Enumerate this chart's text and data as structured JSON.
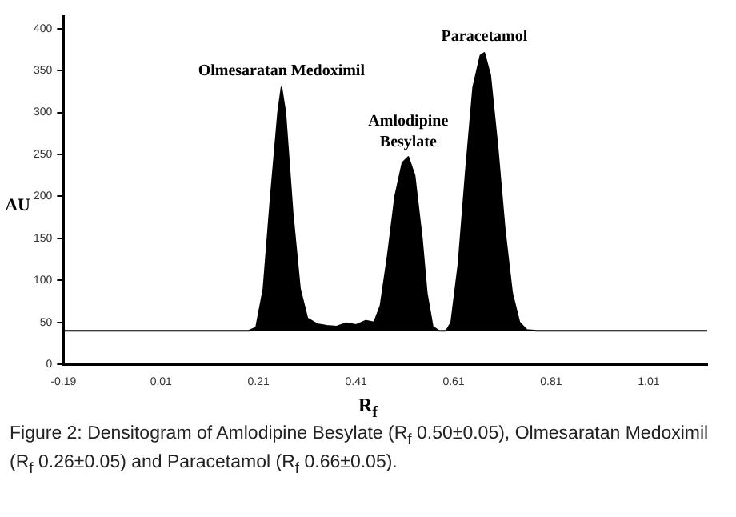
{
  "chart_data": {
    "type": "area",
    "xlabel": "R$_{f}$",
    "ylabel": "AU",
    "x": [
      -0.19,
      0.19,
      0.205,
      0.22,
      0.235,
      0.25,
      0.257,
      0.265,
      0.28,
      0.295,
      0.31,
      0.33,
      0.35,
      0.37,
      0.39,
      0.41,
      0.43,
      0.447,
      0.46,
      0.475,
      0.49,
      0.505,
      0.517,
      0.53,
      0.545,
      0.555,
      0.567,
      0.58,
      0.595,
      0.605,
      0.62,
      0.635,
      0.65,
      0.665,
      0.673,
      0.685,
      0.7,
      0.715,
      0.73,
      0.745,
      0.76,
      0.78,
      1.13
    ],
    "series": [
      {
        "color": "#000000",
        "values": [
          40,
          40,
          44,
          90,
          200,
          300,
          330,
          300,
          180,
          90,
          55,
          48,
          46,
          45,
          49,
          47,
          52,
          50,
          70,
          130,
          200,
          240,
          247,
          225,
          150,
          85,
          45,
          40,
          40,
          50,
          120,
          230,
          330,
          368,
          371,
          345,
          260,
          160,
          85,
          50,
          41,
          40,
          40
        ]
      }
    ],
    "xlim": [
      -0.19,
      1.13
    ],
    "xticks": [
      -0.19,
      0.01,
      0.21,
      0.41,
      0.61,
      0.81,
      1.01
    ],
    "ylim": [
      0,
      415
    ],
    "yticks": [
      0,
      50,
      100,
      150,
      200,
      250,
      300,
      350,
      400
    ],
    "grid": false,
    "legend": false,
    "marker": "none",
    "annotations": [
      {
        "text": "Olmesaratan Medoximil",
        "x": 0.257,
        "y": 330
      },
      {
        "text": "Amlodipine Besylate",
        "x": 0.517,
        "y": 247
      },
      {
        "text": "Paracetamol",
        "x": 0.673,
        "y": 371
      },
      "Figure 2: Densitogram of Amlodipine Besylate (R$_{f}$ 0.50±0.05), Olmesaratan Medoximil (R$_{f}$ 0.26±0.05) and Paracetamol (R$_{f}$ 0.66±0.05)."
    ]
  }
}
